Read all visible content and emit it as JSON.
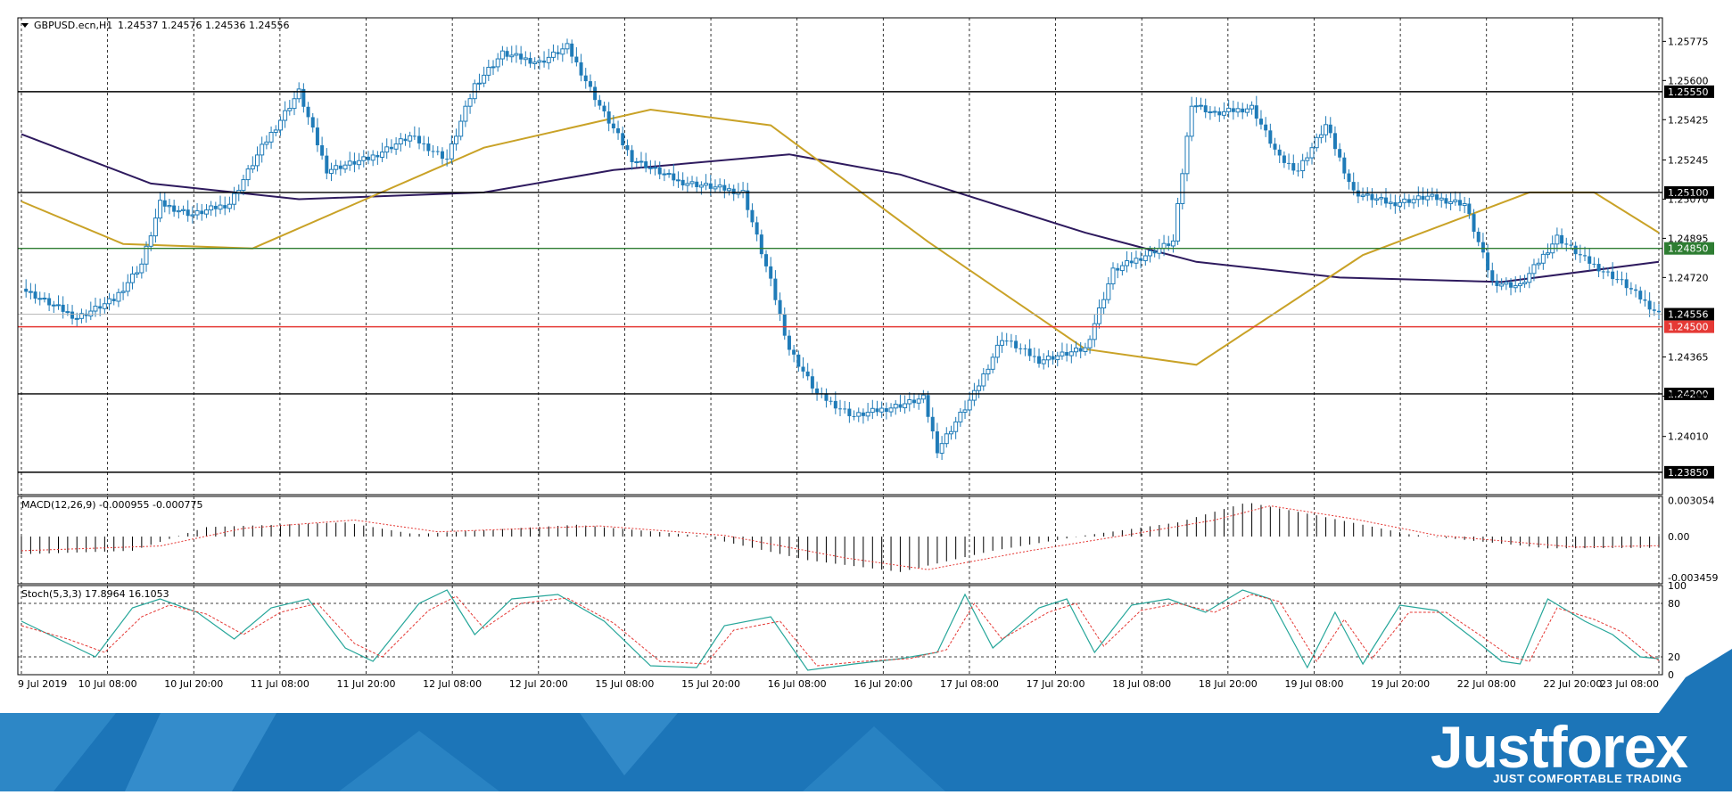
{
  "header": {
    "symbol": "GBPUSD.ecn,H1",
    "ohlc": "1.24537 1.24576 1.24536 1.24556"
  },
  "colors": {
    "candle": "#1f7bb8",
    "grid": "#000000",
    "ma_slow": "#2e1a5e",
    "ma_fast": "#c9a227",
    "support_line": "#e53935",
    "green_level": "#2e7d32",
    "macd_signal": "#e53935",
    "stoch_main": "#26a69a",
    "stoch_signal": "#e53935",
    "banner": "#1c75b8"
  },
  "banner": {
    "logo": "Justforex",
    "tagline": "JUST COMFORTABLE TRADING"
  },
  "chart_data": [
    {
      "type": "candlestick",
      "panel": "price",
      "ylim": [
        1.2375,
        1.2588
      ],
      "y_ticks": [
        "1.25775",
        "1.25600",
        "1.25425",
        "1.25245",
        "1.25070",
        "1.24895",
        "1.24720",
        "1.24365",
        "1.24190",
        "1.24010"
      ],
      "x_ticks": [
        "9 Jul 2019",
        "10 Jul 08:00",
        "10 Jul 20:00",
        "11 Jul 08:00",
        "11 Jul 20:00",
        "12 Jul 08:00",
        "12 Jul 20:00",
        "15 Jul 08:00",
        "15 Jul 20:00",
        "16 Jul 08:00",
        "16 Jul 20:00",
        "17 Jul 08:00",
        "17 Jul 20:00",
        "18 Jul 08:00",
        "18 Jul 20:00",
        "19 Jul 08:00",
        "19 Jul 20:00",
        "22 Jul 08:00",
        "22 Jul 20:00",
        "23 Jul 08:00"
      ],
      "horizontal_levels": [
        {
          "value": 1.2555,
          "label": "1.25550",
          "color": "black"
        },
        {
          "value": 1.251,
          "label": "1.25100",
          "color": "black"
        },
        {
          "value": 1.2485,
          "label": "1.24850",
          "color": "green"
        },
        {
          "value": 1.24556,
          "label": "1.24556",
          "color": "current"
        },
        {
          "value": 1.245,
          "label": "1.24500",
          "color": "red"
        },
        {
          "value": 1.242,
          "label": "1.24200",
          "color": "black"
        },
        {
          "value": 1.2385,
          "label": "1.23850",
          "color": "black"
        }
      ],
      "close_path": [
        [
          0,
          1.2467
        ],
        [
          12,
          1.2454
        ],
        [
          20,
          1.2462
        ],
        [
          26,
          1.2478
        ],
        [
          30,
          1.2505
        ],
        [
          37,
          1.25
        ],
        [
          45,
          1.2505
        ],
        [
          52,
          1.253
        ],
        [
          60,
          1.2555
        ],
        [
          66,
          1.252
        ],
        [
          75,
          1.2525
        ],
        [
          84,
          1.2535
        ],
        [
          92,
          1.2525
        ],
        [
          98,
          1.2558
        ],
        [
          104,
          1.2572
        ],
        [
          112,
          1.2568
        ],
        [
          118,
          1.2575
        ],
        [
          126,
          1.2545
        ],
        [
          132,
          1.2525
        ],
        [
          142,
          1.2515
        ],
        [
          156,
          1.251
        ],
        [
          162,
          1.247
        ],
        [
          166,
          1.244
        ],
        [
          172,
          1.242
        ],
        [
          180,
          1.241
        ],
        [
          190,
          1.2415
        ],
        [
          195,
          1.2418
        ],
        [
          198,
          1.2395
        ],
        [
          206,
          1.242
        ],
        [
          212,
          1.2445
        ],
        [
          220,
          1.2435
        ],
        [
          230,
          1.244
        ],
        [
          236,
          1.2475
        ],
        [
          243,
          1.2482
        ],
        [
          249,
          1.2488
        ],
        [
          253,
          1.255
        ],
        [
          258,
          1.2545
        ],
        [
          266,
          1.2548
        ],
        [
          272,
          1.2525
        ],
        [
          276,
          1.252
        ],
        [
          282,
          1.254
        ],
        [
          288,
          1.251
        ],
        [
          296,
          1.2505
        ],
        [
          304,
          1.2508
        ],
        [
          312,
          1.2505
        ],
        [
          318,
          1.247
        ],
        [
          324,
          1.2468
        ],
        [
          332,
          1.249
        ],
        [
          338,
          1.248
        ],
        [
          346,
          1.247
        ],
        [
          354,
          1.24556
        ]
      ],
      "moving_averages": [
        {
          "color_key": "ma_slow",
          "points": [
            [
              0,
              1.2536
            ],
            [
              28,
              1.2514
            ],
            [
              60,
              1.2507
            ],
            [
              100,
              1.251
            ],
            [
              128,
              1.252
            ],
            [
              166,
              1.2527
            ],
            [
              190,
              1.2518
            ],
            [
              230,
              1.2492
            ],
            [
              254,
              1.2479
            ],
            [
              285,
              1.2472
            ],
            [
              320,
              1.247
            ],
            [
              354,
              1.2479
            ]
          ]
        },
        {
          "color_key": "ma_fast",
          "points": [
            [
              0,
              1.2506
            ],
            [
              22,
              1.2487
            ],
            [
              50,
              1.2485
            ],
            [
              70,
              1.2503
            ],
            [
              100,
              1.253
            ],
            [
              136,
              1.2547
            ],
            [
              162,
              1.254
            ],
            [
              196,
              1.2488
            ],
            [
              230,
              1.244
            ],
            [
              254,
              1.2433
            ],
            [
              290,
              1.2482
            ],
            [
              326,
              1.251
            ],
            [
              340,
              1.251
            ],
            [
              354,
              1.2492
            ]
          ]
        }
      ]
    },
    {
      "type": "line",
      "panel": "macd",
      "title": "MACD(12,26,9) -0.000955 -0.000775",
      "ylim": [
        -0.004,
        0.0034
      ],
      "y_ticks": [
        "0.003054",
        "0.00",
        "-0.003459"
      ],
      "macd_path": [
        [
          0,
          -0.0015
        ],
        [
          24,
          -0.0012
        ],
        [
          40,
          0.0008
        ],
        [
          70,
          0.0012
        ],
        [
          85,
          0.0002
        ],
        [
          120,
          0.001
        ],
        [
          146,
          0.0001
        ],
        [
          170,
          -0.002
        ],
        [
          190,
          -0.003
        ],
        [
          210,
          -0.0012
        ],
        [
          230,
          0.0001
        ],
        [
          250,
          0.0012
        ],
        [
          265,
          0.0029
        ],
        [
          280,
          0.0018
        ],
        [
          300,
          0.0002
        ],
        [
          330,
          -0.001
        ],
        [
          354,
          -0.000955
        ]
      ],
      "signal_path": [
        [
          0,
          -0.0012
        ],
        [
          30,
          -0.0008
        ],
        [
          48,
          0.0007
        ],
        [
          72,
          0.0014
        ],
        [
          90,
          0.0004
        ],
        [
          125,
          0.0009
        ],
        [
          152,
          0.0001
        ],
        [
          178,
          -0.0018
        ],
        [
          196,
          -0.0028
        ],
        [
          218,
          -0.0012
        ],
        [
          240,
          0.0002
        ],
        [
          258,
          0.0014
        ],
        [
          270,
          0.0026
        ],
        [
          288,
          0.0015
        ],
        [
          306,
          0.0001
        ],
        [
          336,
          -0.0009
        ],
        [
          354,
          -0.000775
        ]
      ]
    },
    {
      "type": "line",
      "panel": "stochastic",
      "title": "Stoch(5,3,3) 17.8964 16.1053",
      "ylim": [
        0,
        100
      ],
      "y_ticks": [
        "100",
        "80",
        "20",
        "0"
      ],
      "levels": [
        80,
        20
      ],
      "main_path": [
        [
          0,
          60
        ],
        [
          10,
          35
        ],
        [
          16,
          20
        ],
        [
          24,
          75
        ],
        [
          30,
          85
        ],
        [
          38,
          70
        ],
        [
          46,
          40
        ],
        [
          54,
          75
        ],
        [
          62,
          85
        ],
        [
          70,
          30
        ],
        [
          76,
          15
        ],
        [
          86,
          80
        ],
        [
          92,
          95
        ],
        [
          98,
          45
        ],
        [
          106,
          85
        ],
        [
          116,
          90
        ],
        [
          126,
          60
        ],
        [
          136,
          10
        ],
        [
          146,
          8
        ],
        [
          152,
          55
        ],
        [
          162,
          65
        ],
        [
          170,
          5
        ],
        [
          180,
          12
        ],
        [
          190,
          18
        ],
        [
          198,
          25
        ],
        [
          204,
          90
        ],
        [
          210,
          30
        ],
        [
          220,
          75
        ],
        [
          226,
          85
        ],
        [
          232,
          25
        ],
        [
          240,
          78
        ],
        [
          248,
          85
        ],
        [
          256,
          70
        ],
        [
          264,
          95
        ],
        [
          270,
          85
        ],
        [
          278,
          8
        ],
        [
          284,
          70
        ],
        [
          290,
          12
        ],
        [
          298,
          78
        ],
        [
          306,
          72
        ],
        [
          314,
          40
        ],
        [
          320,
          15
        ],
        [
          324,
          12
        ],
        [
          330,
          85
        ],
        [
          338,
          60
        ],
        [
          344,
          45
        ],
        [
          350,
          20
        ],
        [
          354,
          17.8964
        ]
      ],
      "signal_path": [
        [
          0,
          55
        ],
        [
          10,
          40
        ],
        [
          18,
          25
        ],
        [
          26,
          65
        ],
        [
          32,
          78
        ],
        [
          40,
          68
        ],
        [
          48,
          45
        ],
        [
          56,
          70
        ],
        [
          64,
          80
        ],
        [
          72,
          35
        ],
        [
          78,
          20
        ],
        [
          88,
          72
        ],
        [
          94,
          88
        ],
        [
          100,
          52
        ],
        [
          108,
          80
        ],
        [
          118,
          86
        ],
        [
          128,
          58
        ],
        [
          138,
          15
        ],
        [
          148,
          12
        ],
        [
          154,
          50
        ],
        [
          164,
          60
        ],
        [
          172,
          10
        ],
        [
          182,
          15
        ],
        [
          192,
          18
        ],
        [
          200,
          28
        ],
        [
          206,
          80
        ],
        [
          212,
          40
        ],
        [
          222,
          70
        ],
        [
          228,
          80
        ],
        [
          234,
          32
        ],
        [
          242,
          72
        ],
        [
          250,
          80
        ],
        [
          258,
          70
        ],
        [
          266,
          90
        ],
        [
          272,
          82
        ],
        [
          280,
          15
        ],
        [
          286,
          62
        ],
        [
          292,
          18
        ],
        [
          300,
          70
        ],
        [
          308,
          70
        ],
        [
          316,
          42
        ],
        [
          322,
          20
        ],
        [
          326,
          15
        ],
        [
          332,
          75
        ],
        [
          340,
          62
        ],
        [
          346,
          48
        ],
        [
          352,
          22
        ],
        [
          354,
          16.1053
        ]
      ]
    }
  ]
}
